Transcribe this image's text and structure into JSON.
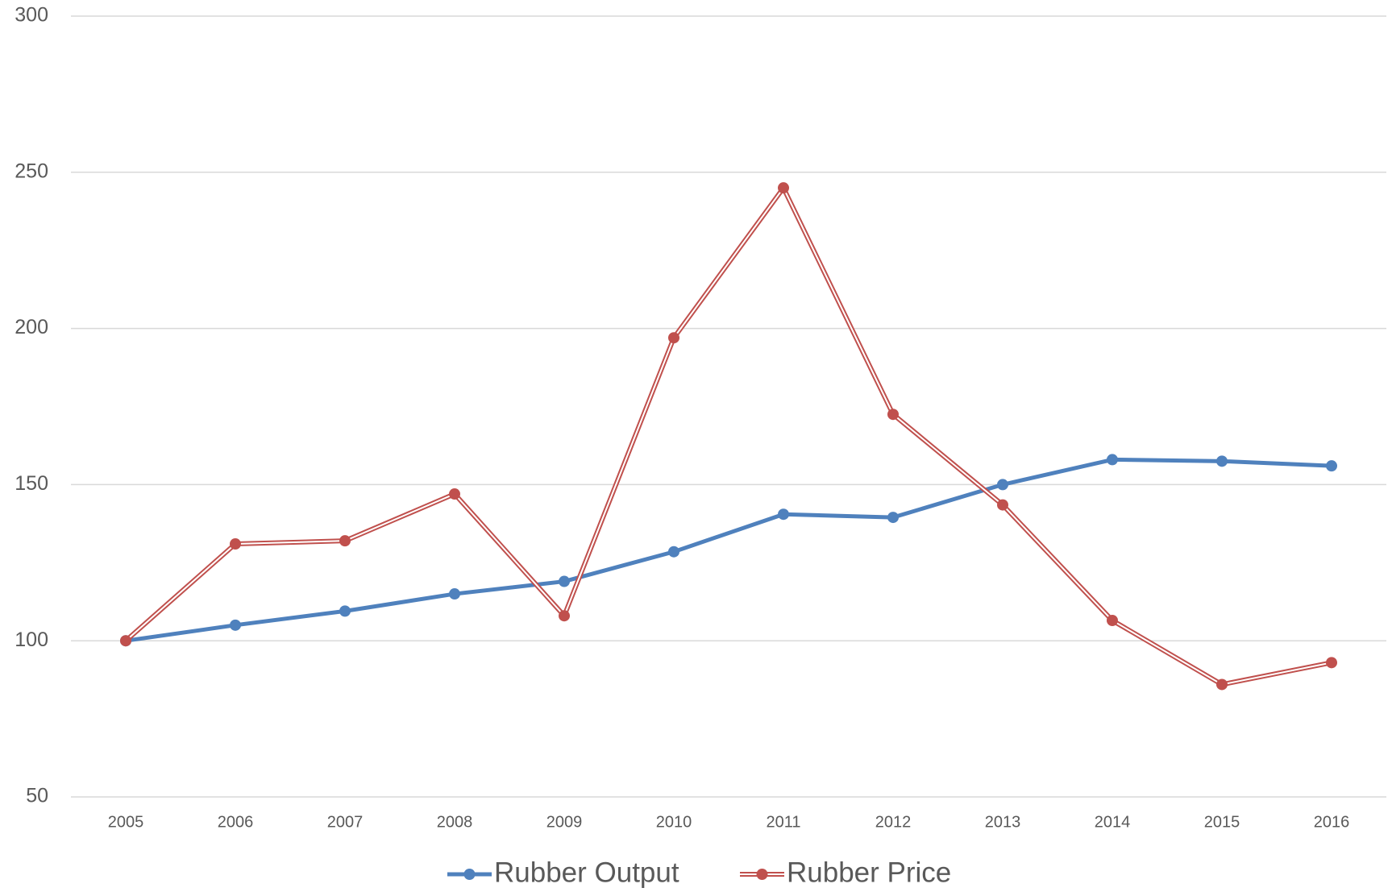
{
  "chart_data": {
    "type": "line",
    "categories": [
      "2005",
      "2006",
      "2007",
      "2008",
      "2009",
      "2010",
      "2011",
      "2012",
      "2013",
      "2014",
      "2015",
      "2016"
    ],
    "series": [
      {
        "name": "Rubber Output",
        "color": "#4f81bd",
        "values": [
          100,
          105,
          109.5,
          115,
          119,
          128.5,
          140.5,
          139.5,
          150,
          158,
          157.5,
          156
        ]
      },
      {
        "name": "Rubber Price",
        "color": "#c0504d",
        "values": [
          100,
          131,
          132,
          147,
          108,
          197,
          245,
          172.5,
          143.5,
          106.5,
          86,
          93
        ]
      }
    ],
    "ylim": [
      50,
      300
    ],
    "yticks": [
      50,
      100,
      150,
      200,
      250,
      300
    ],
    "grid": true
  }
}
